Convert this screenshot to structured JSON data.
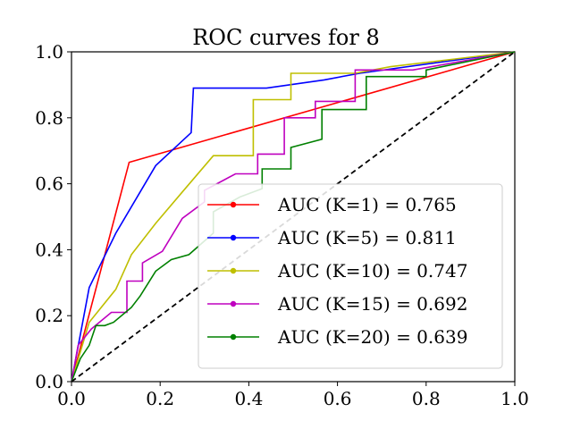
{
  "chart_data": {
    "type": "line",
    "title": "ROC curves for 8",
    "xlabel": "",
    "ylabel": "",
    "xlim": [
      0.0,
      1.0
    ],
    "ylim": [
      0.0,
      1.0
    ],
    "grid": false,
    "legend_position": "lower-right",
    "x_ticks": [
      "0.0",
      "0.2",
      "0.4",
      "0.6",
      "0.8",
      "1.0"
    ],
    "y_ticks": [
      "0.0",
      "0.2",
      "0.4",
      "0.6",
      "0.8",
      "1.0"
    ],
    "x_tick_values": [
      0.0,
      0.2,
      0.4,
      0.6,
      0.8,
      1.0
    ],
    "y_tick_values": [
      0.0,
      0.2,
      0.4,
      0.6,
      0.8,
      1.0
    ],
    "diagonal": {
      "x": [
        0.0,
        1.0
      ],
      "y": [
        0.0,
        1.0
      ],
      "color": "#000000",
      "style": "dashed"
    },
    "series": [
      {
        "name": "AUC (K=1) = 0.765",
        "color": "#ff0000",
        "x": [
          0.0,
          0.13,
          1.0
        ],
        "y": [
          0.0,
          0.665,
          1.0
        ]
      },
      {
        "name": "AUC (K=5) = 0.811",
        "color": "#0000ff",
        "x": [
          0.0,
          0.04,
          0.1,
          0.19,
          0.27,
          0.275,
          0.44,
          0.57,
          0.65,
          1.0
        ],
        "y": [
          0.0,
          0.285,
          0.45,
          0.655,
          0.755,
          0.89,
          0.89,
          0.915,
          0.935,
          1.0
        ],
        "step": [
          false,
          false,
          false,
          false,
          false,
          false,
          false,
          false,
          false,
          false
        ]
      },
      {
        "name": "AUC (K=10) = 0.747",
        "color": "#bfbf00",
        "x": [
          0.0,
          0.04,
          0.1,
          0.135,
          0.19,
          0.25,
          0.32,
          0.41,
          0.41,
          0.495,
          0.495,
          0.59,
          0.64,
          0.72,
          1.0
        ],
        "y": [
          0.0,
          0.18,
          0.28,
          0.385,
          0.48,
          0.575,
          0.685,
          0.685,
          0.855,
          0.855,
          0.935,
          0.935,
          0.935,
          0.955,
          1.0
        ]
      },
      {
        "name": "AUC (K=15) = 0.692",
        "color": "#bf00bf",
        "x": [
          0.0,
          0.015,
          0.045,
          0.09,
          0.125,
          0.125,
          0.16,
          0.16,
          0.205,
          0.25,
          0.3,
          0.3,
          0.37,
          0.42,
          0.42,
          0.48,
          0.48,
          0.55,
          0.55,
          0.64,
          0.64,
          0.77,
          1.0
        ],
        "y": [
          0.0,
          0.11,
          0.16,
          0.21,
          0.21,
          0.305,
          0.305,
          0.36,
          0.395,
          0.495,
          0.545,
          0.58,
          0.63,
          0.63,
          0.69,
          0.69,
          0.8,
          0.8,
          0.85,
          0.85,
          0.945,
          0.945,
          1.0
        ]
      },
      {
        "name": "AUC (K=20) = 0.639",
        "color": "#008000",
        "x": [
          0.0,
          0.02,
          0.04,
          0.055,
          0.075,
          0.095,
          0.135,
          0.155,
          0.19,
          0.225,
          0.265,
          0.32,
          0.32,
          0.38,
          0.43,
          0.43,
          0.495,
          0.495,
          0.565,
          0.565,
          0.665,
          0.665,
          0.8,
          0.8,
          1.0
        ],
        "y": [
          0.0,
          0.07,
          0.11,
          0.17,
          0.17,
          0.18,
          0.225,
          0.26,
          0.335,
          0.37,
          0.385,
          0.45,
          0.515,
          0.56,
          0.585,
          0.645,
          0.645,
          0.71,
          0.735,
          0.825,
          0.825,
          0.925,
          0.925,
          0.945,
          1.0
        ]
      }
    ]
  }
}
